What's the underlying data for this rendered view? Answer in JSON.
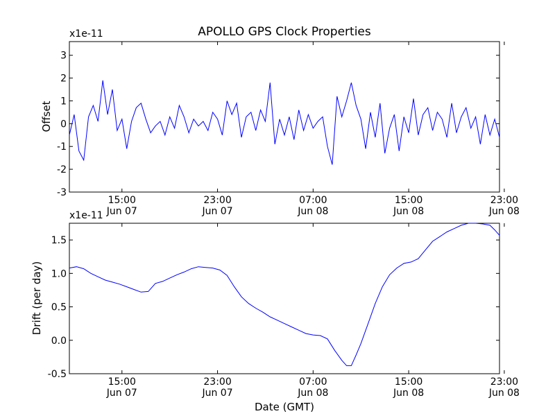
{
  "figure": {
    "title": "APOLLO GPS Clock Properties",
    "xlabel": "Date (GMT)"
  },
  "chart_data": [
    {
      "type": "line",
      "title": "APOLLO GPS Clock Properties",
      "ylabel": "Offset",
      "multiplier_label": "x1e-11",
      "ylim": [
        -3,
        3.6
      ],
      "yticks": [
        -3,
        -2,
        -1,
        0,
        1,
        2,
        3
      ],
      "ytick_labels": [
        "-3",
        "-2",
        "-1",
        "0",
        "1",
        "2",
        "3"
      ],
      "xticks": [
        {
          "time": "15:00",
          "date": "Jun 07",
          "h": 15
        },
        {
          "time": "23:00",
          "date": "Jun 07",
          "h": 23
        },
        {
          "time": "07:00",
          "date": "Jun 08",
          "h": 31
        },
        {
          "time": "15:00",
          "date": "Jun 08",
          "h": 39
        },
        {
          "time": "23:00",
          "date": "Jun 08",
          "h": 47
        }
      ],
      "x_range_hours": [
        10.6,
        46.6
      ],
      "series": [
        {
          "color": "#0000ff",
          "x_hours": [
            10.6,
            11.0,
            11.4,
            11.8,
            12.2,
            12.6,
            13.0,
            13.4,
            13.8,
            14.2,
            14.6,
            15.0,
            15.4,
            15.8,
            16.2,
            16.6,
            17.0,
            17.4,
            17.8,
            18.2,
            18.6,
            19.0,
            19.4,
            19.8,
            20.2,
            20.6,
            21.0,
            21.4,
            21.8,
            22.2,
            22.6,
            23.0,
            23.4,
            23.8,
            24.2,
            24.6,
            25.0,
            25.4,
            25.8,
            26.2,
            26.6,
            27.0,
            27.4,
            27.8,
            28.2,
            28.6,
            29.0,
            29.4,
            29.8,
            30.2,
            30.6,
            31.0,
            31.4,
            31.8,
            32.2,
            32.6,
            33.0,
            33.4,
            33.8,
            34.2,
            34.6,
            35.0,
            35.4,
            35.8,
            36.2,
            36.6,
            37.0,
            37.4,
            37.8,
            38.2,
            38.6,
            39.0,
            39.4,
            39.8,
            40.2,
            40.6,
            41.0,
            41.4,
            41.8,
            42.2,
            42.6,
            43.0,
            43.4,
            43.8,
            44.2,
            44.6,
            45.0,
            45.4,
            45.8,
            46.2,
            46.6
          ],
          "values": [
            -0.5,
            0.4,
            -1.2,
            -1.6,
            0.3,
            0.8,
            0.1,
            1.9,
            0.4,
            1.5,
            -0.3,
            0.2,
            -1.1,
            0.1,
            0.7,
            0.9,
            0.2,
            -0.4,
            -0.1,
            0.1,
            -0.5,
            0.3,
            -0.2,
            0.8,
            0.3,
            -0.4,
            0.2,
            -0.1,
            0.1,
            -0.3,
            0.5,
            0.2,
            -0.5,
            1.0,
            0.4,
            0.9,
            -0.6,
            0.3,
            0.5,
            -0.3,
            0.6,
            0.1,
            1.8,
            -0.9,
            0.2,
            -0.5,
            0.3,
            -0.7,
            0.6,
            -0.3,
            0.4,
            -0.2,
            0.1,
            0.3,
            -1.0,
            -1.8,
            1.2,
            0.3,
            1.0,
            1.8,
            0.8,
            0.2,
            -1.1,
            0.5,
            -0.6,
            0.9,
            -1.3,
            -0.2,
            0.4,
            -1.2,
            0.3,
            -0.4,
            1.1,
            -0.5,
            0.4,
            0.7,
            -0.3,
            0.5,
            0.2,
            -0.6,
            0.9,
            -0.4,
            0.3,
            0.7,
            -0.2,
            0.3,
            -0.9,
            0.4,
            -0.5,
            0.2,
            -0.6
          ]
        }
      ]
    },
    {
      "type": "line",
      "ylabel": "Drift (per day)",
      "xlabel": "Date (GMT)",
      "multiplier_label": "x1e-11",
      "ylim": [
        -0.5,
        1.75
      ],
      "yticks": [
        -0.5,
        0.0,
        0.5,
        1.0,
        1.5
      ],
      "ytick_labels": [
        "-0.5",
        "0.0",
        "0.5",
        "1.0",
        "1.5"
      ],
      "xticks": [
        {
          "time": "15:00",
          "date": "Jun 07",
          "h": 15
        },
        {
          "time": "23:00",
          "date": "Jun 07",
          "h": 23
        },
        {
          "time": "07:00",
          "date": "Jun 08",
          "h": 31
        },
        {
          "time": "15:00",
          "date": "Jun 08",
          "h": 39
        },
        {
          "time": "23:00",
          "date": "Jun 08",
          "h": 47
        }
      ],
      "x_range_hours": [
        10.6,
        46.6
      ],
      "series": [
        {
          "color": "#0000ff",
          "x_hours": [
            10.6,
            11.2,
            11.8,
            12.4,
            13.0,
            13.6,
            14.2,
            14.8,
            15.4,
            16.0,
            16.6,
            17.2,
            17.8,
            18.4,
            19.0,
            19.6,
            20.2,
            20.8,
            21.4,
            22.0,
            22.6,
            23.2,
            23.8,
            24.4,
            25.0,
            25.6,
            26.2,
            26.8,
            27.4,
            28.0,
            28.6,
            29.2,
            29.8,
            30.4,
            31.0,
            31.6,
            32.2,
            32.8,
            33.4,
            33.8,
            34.2,
            34.6,
            35.0,
            35.6,
            36.2,
            36.8,
            37.4,
            38.0,
            38.6,
            39.2,
            39.8,
            40.4,
            41.0,
            41.6,
            42.2,
            42.8,
            43.4,
            44.0,
            44.6,
            45.2,
            45.8,
            46.2,
            46.6
          ],
          "values": [
            1.08,
            1.1,
            1.07,
            1.0,
            0.95,
            0.9,
            0.87,
            0.84,
            0.8,
            0.76,
            0.72,
            0.73,
            0.85,
            0.88,
            0.93,
            0.98,
            1.02,
            1.07,
            1.1,
            1.09,
            1.08,
            1.05,
            0.97,
            0.8,
            0.65,
            0.55,
            0.48,
            0.42,
            0.35,
            0.3,
            0.25,
            0.2,
            0.15,
            0.1,
            0.08,
            0.07,
            0.02,
            -0.15,
            -0.3,
            -0.38,
            -0.38,
            -0.22,
            -0.05,
            0.25,
            0.55,
            0.8,
            0.98,
            1.08,
            1.15,
            1.17,
            1.22,
            1.35,
            1.48,
            1.55,
            1.62,
            1.67,
            1.72,
            1.75,
            1.76,
            1.74,
            1.72,
            1.65,
            1.57
          ]
        }
      ]
    }
  ]
}
